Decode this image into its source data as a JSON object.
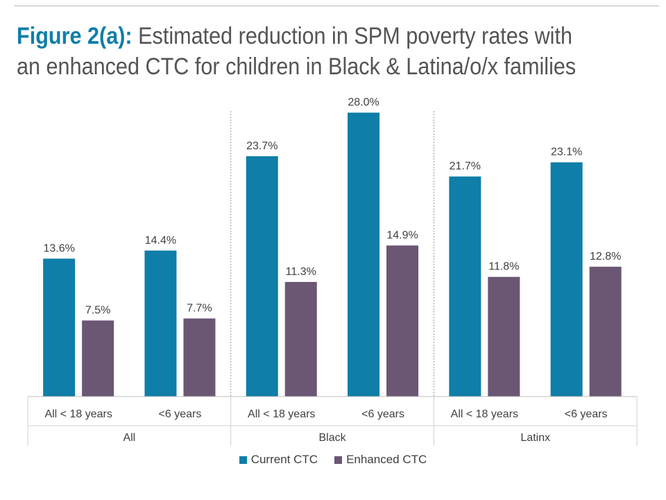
{
  "title": {
    "figure_label": "Figure 2(a):",
    "line1": "Estimated reduction in SPM poverty rates with",
    "line2": "an enhanced CTC for children in Black & Latina/o/x families"
  },
  "colors": {
    "current": "#0f7ea8",
    "enhanced": "#6b5674",
    "title_accent": "#0f7ea8"
  },
  "chart_data": {
    "type": "bar",
    "title": "Estimated reduction in SPM poverty rates with an enhanced CTC for children in Black & Latina/o/x families",
    "groups": [
      "All",
      "Black",
      "Latinx"
    ],
    "categories": [
      "All < 18 years",
      "<6 years",
      "All < 18 years",
      "<6 years",
      "All < 18 years",
      "<6 years"
    ],
    "category_group": [
      "All",
      "All",
      "Black",
      "Black",
      "Latinx",
      "Latinx"
    ],
    "series": [
      {
        "name": "Current CTC",
        "values": [
          13.6,
          14.4,
          23.7,
          28.0,
          21.7,
          23.1
        ],
        "labels": [
          "13.6%",
          "14.4%",
          "23.7%",
          "28.0%",
          "21.7%",
          "23.1%"
        ]
      },
      {
        "name": "Enhanced CTC",
        "values": [
          7.5,
          7.7,
          11.3,
          14.9,
          11.8,
          12.8
        ],
        "labels": [
          "7.5%",
          "7.7%",
          "11.3%",
          "14.9%",
          "11.8%",
          "12.8%"
        ]
      }
    ],
    "ylim": [
      0,
      30
    ],
    "xlabel": "",
    "ylabel": "",
    "grid": false,
    "legend_position": "bottom"
  }
}
